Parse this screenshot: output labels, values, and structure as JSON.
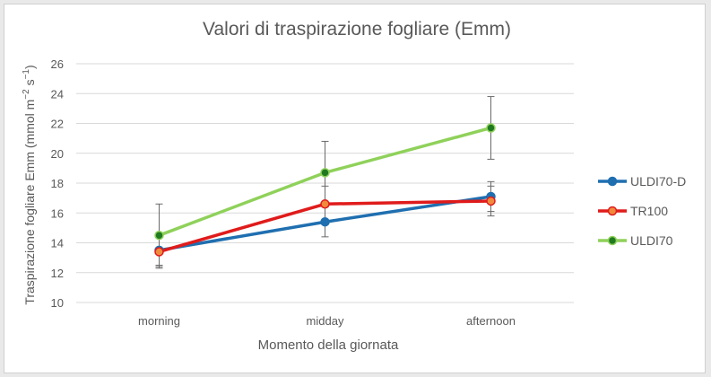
{
  "chart_data": {
    "type": "line",
    "title": "Valori di traspirazione fogliare (Emm)",
    "xlabel": "Momento della giornata",
    "ylabel": "Traspirazione fogliare Emm (mmol m",
    "ylabel_sup1": "−2",
    "ylabel_mid": " s",
    "ylabel_sup2": "−1",
    "ylabel_end": ")",
    "categories": [
      "morning",
      "midday",
      "afternoon"
    ],
    "ylim": [
      10,
      26
    ],
    "yticks": [
      10,
      12,
      14,
      16,
      18,
      20,
      22,
      24,
      26
    ],
    "grid": true,
    "legend_position": "right",
    "series": [
      {
        "name": "ULDI70-D",
        "values": [
          13.5,
          15.4,
          17.1
        ],
        "errors": [
          1.0,
          1.0,
          1.0
        ],
        "color": "#1f6fb0",
        "marker_fill": "#1f6fb0"
      },
      {
        "name": "TR100",
        "values": [
          13.4,
          16.6,
          16.8
        ],
        "errors": [
          1.1,
          1.2,
          1.0
        ],
        "color": "#e01b1b",
        "marker_fill": "#f08a3c"
      },
      {
        "name": "ULDI70",
        "values": [
          14.5,
          18.7,
          21.7
        ],
        "errors": [
          2.1,
          2.1,
          2.1
        ],
        "color": "#8fd15a",
        "marker_fill": "#1f7a1f"
      }
    ]
  }
}
